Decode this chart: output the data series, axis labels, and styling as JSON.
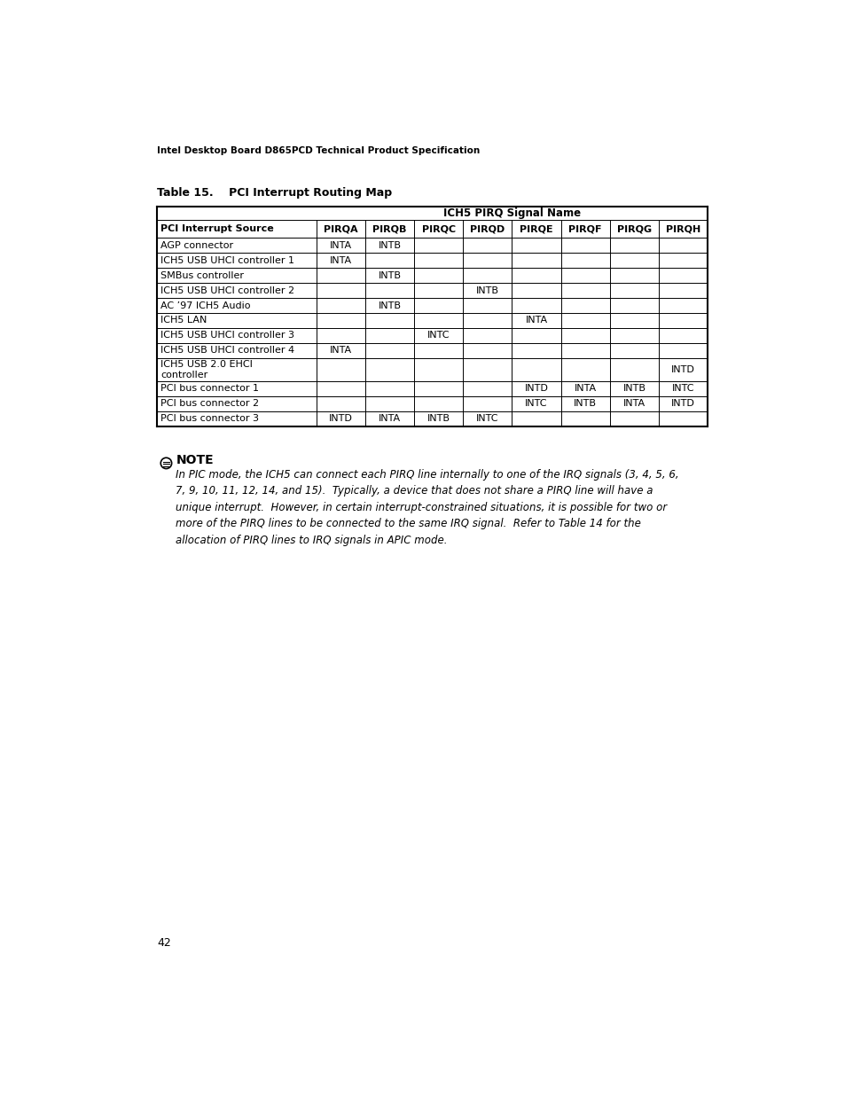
{
  "page_header": "Intel Desktop Board D865PCD Technical Product Specification",
  "table_title": "Table 15.    PCI Interrupt Routing Map",
  "col_group_header": "ICH5 PIRQ Signal Name",
  "col_headers": [
    "PCI Interrupt Source",
    "PIRQA",
    "PIRQB",
    "PIRQC",
    "PIRQD",
    "PIRQE",
    "PIRQF",
    "PIRQG",
    "PIRQH"
  ],
  "rows": [
    [
      "AGP connector",
      "INTA",
      "INTB",
      "",
      "",
      "",
      "",
      "",
      ""
    ],
    [
      "ICH5 USB UHCI controller 1",
      "INTA",
      "",
      "",
      "",
      "",
      "",
      "",
      ""
    ],
    [
      "SMBus controller",
      "",
      "INTB",
      "",
      "",
      "",
      "",
      "",
      ""
    ],
    [
      "ICH5 USB UHCI controller 2",
      "",
      "",
      "",
      "INTB",
      "",
      "",
      "",
      ""
    ],
    [
      "AC ’97 ICH5 Audio",
      "",
      "INTB",
      "",
      "",
      "",
      "",
      "",
      ""
    ],
    [
      "ICH5 LAN",
      "",
      "",
      "",
      "",
      "INTA",
      "",
      "",
      ""
    ],
    [
      "ICH5 USB UHCI controller 3",
      "",
      "",
      "INTC",
      "",
      "",
      "",
      "",
      ""
    ],
    [
      "ICH5 USB UHCI controller 4",
      "INTA",
      "",
      "",
      "",
      "",
      "",
      "",
      ""
    ],
    [
      "ICH5 USB 2.0 EHCI\ncontroller",
      "",
      "",
      "",
      "",
      "",
      "",
      "",
      "INTD"
    ],
    [
      "PCI bus connector 1",
      "",
      "",
      "",
      "",
      "INTD",
      "INTA",
      "INTB",
      "INTC"
    ],
    [
      "PCI bus connector 2",
      "",
      "",
      "",
      "",
      "INTC",
      "INTB",
      "INTA",
      "INTD"
    ],
    [
      "PCI bus connector 3",
      "INTD",
      "INTA",
      "INTB",
      "INTC",
      "",
      "",
      "",
      ""
    ]
  ],
  "note_title": "NOTE",
  "note_text": "In PIC mode, the ICH5 can connect each PIRQ line internally to one of the IRQ signals (3, 4, 5, 6,\n7, 9, 10, 11, 12, 14, and 15).  Typically, a device that does not share a PIRQ line will have a\nunique interrupt.  However, in certain interrupt-constrained situations, it is possible for two or\nmore of the PIRQ lines to be connected to the same IRQ signal.  Refer to Table 14 for the\nallocation of PIRQ lines to IRQ signals in APIC mode.",
  "page_number": "42",
  "bg_color": "#ffffff",
  "text_color": "#000000"
}
